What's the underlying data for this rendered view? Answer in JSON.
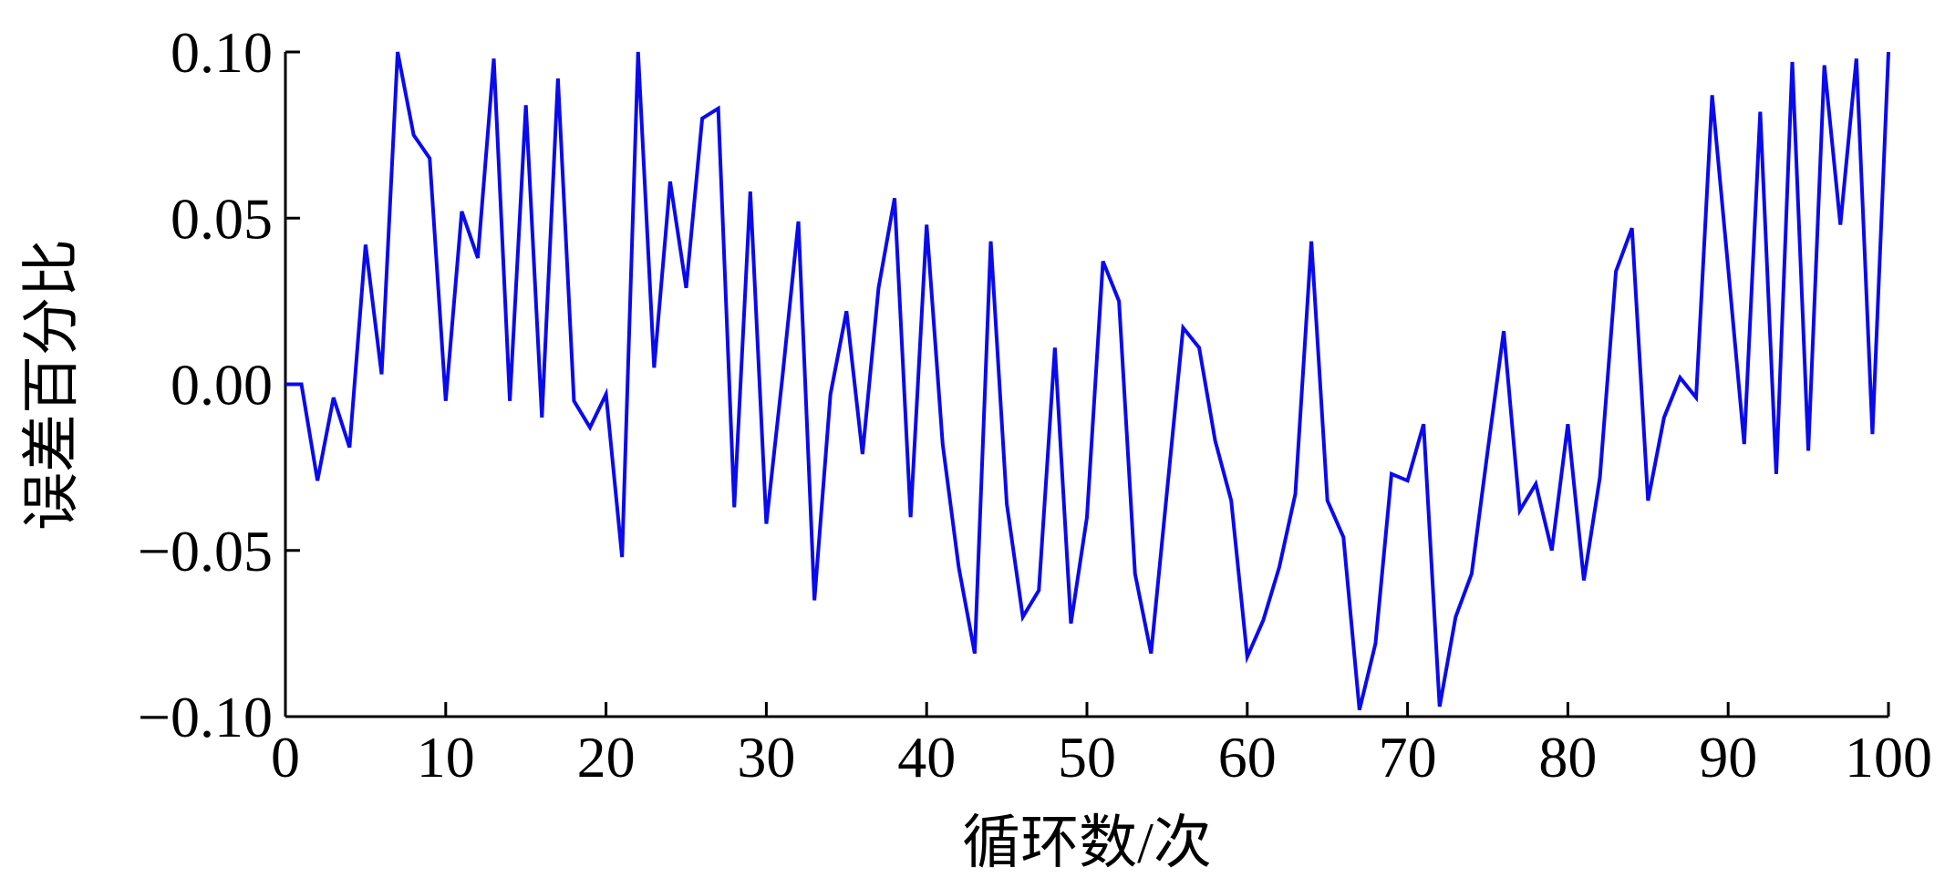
{
  "chart_data": {
    "type": "line",
    "xlabel": "循环数/次",
    "ylabel": "误差百分比",
    "x": [
      0,
      1,
      2,
      3,
      4,
      5,
      6,
      7,
      8,
      9,
      10,
      11,
      12,
      13,
      14,
      15,
      16,
      17,
      18,
      19,
      20,
      21,
      22,
      23,
      24,
      25,
      26,
      27,
      28,
      29,
      30,
      31,
      32,
      33,
      34,
      35,
      36,
      37,
      38,
      39,
      40,
      41,
      42,
      43,
      44,
      45,
      46,
      47,
      48,
      49,
      50,
      51,
      52,
      53,
      54,
      55,
      56,
      57,
      58,
      59,
      60,
      61,
      62,
      63,
      64,
      65,
      66,
      67,
      68,
      69,
      70,
      71,
      72,
      73,
      74,
      75,
      76,
      77,
      78,
      79,
      80,
      81,
      82,
      83,
      84,
      85,
      86,
      87,
      88,
      89,
      90,
      91,
      92,
      93,
      94,
      95,
      96,
      97,
      98,
      99,
      100
    ],
    "series": [
      {
        "name": "误差",
        "color": "#0a0aee",
        "values": [
          0.0,
          0.0,
          -0.029,
          -0.004,
          -0.019,
          0.042,
          0.003,
          0.1,
          0.075,
          0.068,
          -0.005,
          0.052,
          0.038,
          0.098,
          -0.005,
          0.084,
          -0.01,
          0.092,
          -0.005,
          -0.013,
          -0.003,
          -0.052,
          0.1,
          0.005,
          0.061,
          0.029,
          0.08,
          0.083,
          -0.037,
          0.058,
          -0.042,
          0.002,
          0.049,
          -0.065,
          -0.003,
          0.022,
          -0.021,
          0.029,
          0.056,
          -0.04,
          0.048,
          -0.018,
          -0.055,
          -0.081,
          0.043,
          -0.036,
          -0.07,
          -0.062,
          0.011,
          -0.072,
          -0.04,
          0.037,
          0.025,
          -0.057,
          -0.081,
          -0.032,
          0.017,
          0.011,
          -0.017,
          -0.035,
          -0.082,
          -0.071,
          -0.055,
          -0.033,
          0.043,
          -0.035,
          -0.046,
          -0.098,
          -0.078,
          -0.027,
          -0.029,
          -0.012,
          -0.097,
          -0.07,
          -0.057,
          -0.02,
          0.016,
          -0.038,
          -0.03,
          -0.05,
          -0.012,
          -0.059,
          -0.028,
          0.034,
          0.047,
          -0.035,
          -0.01,
          0.002,
          -0.004,
          0.087,
          0.035,
          -0.018,
          0.082,
          -0.027,
          0.097,
          -0.02,
          0.096,
          0.048,
          0.098,
          -0.015,
          0.1
        ]
      }
    ],
    "xlim": [
      0,
      100
    ],
    "ylim": [
      -0.1,
      0.1
    ],
    "xticks": [
      0,
      10,
      20,
      30,
      40,
      50,
      60,
      70,
      80,
      90,
      100
    ],
    "yticks": [
      {
        "value": -0.1,
        "label": "−0.10"
      },
      {
        "value": -0.05,
        "label": "−0.05"
      },
      {
        "value": 0,
        "label": "0.00"
      },
      {
        "value": 0.05,
        "label": "0.05"
      },
      {
        "value": 0.1,
        "label": "0.10"
      }
    ]
  }
}
